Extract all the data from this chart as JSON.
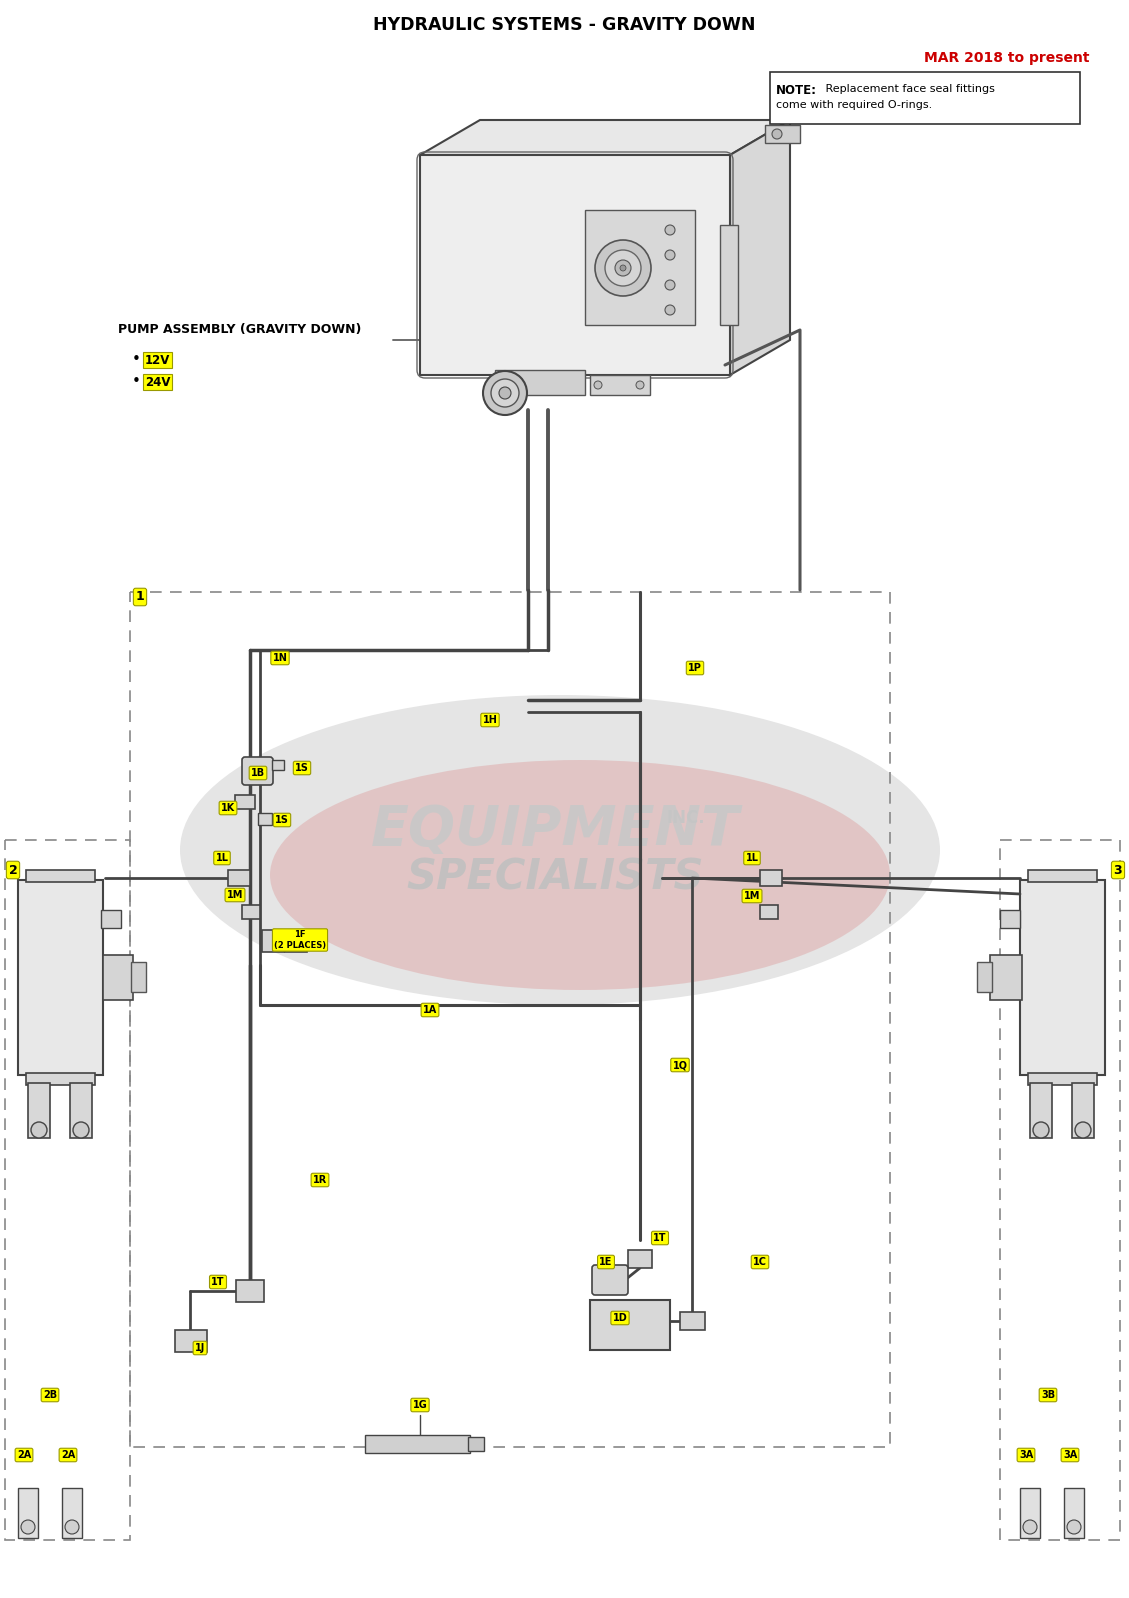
{
  "title": "HYDRAULIC SYSTEMS - GRAVITY DOWN",
  "date_label": "MAR 2018 to present",
  "note_line1": "NOTE:  Replacement face seal fittings",
  "note_line2": "come with required O-rings.",
  "pump_label": "PUMP ASSEMBLY (GRAVITY DOWN)",
  "pump_bullets": [
    "12V",
    "24V"
  ],
  "background_color": "#ffffff",
  "title_color": "#000000",
  "date_color": "#cc0000",
  "yellow": "#ffff00",
  "dark": "#333333",
  "mid": "#666666",
  "light": "#cccccc",
  "lighter": "#e8e8e8"
}
